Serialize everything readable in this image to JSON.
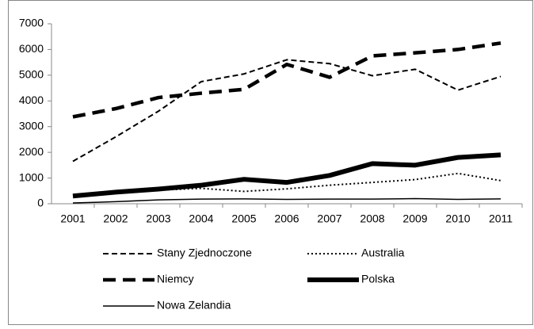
{
  "chart_data": {
    "type": "line",
    "categories": [
      "2001",
      "2002",
      "2003",
      "2004",
      "2005",
      "2006",
      "2007",
      "2008",
      "2009",
      "2010",
      "2011"
    ],
    "series": [
      {
        "name": "Stany Zjednoczone",
        "color": "#000000",
        "style": "dashed",
        "values": [
          1650,
          2600,
          3600,
          4750,
          5050,
          5600,
          5450,
          4980,
          5230,
          4420,
          4950
        ]
      },
      {
        "name": "Australia",
        "color": "#000000",
        "style": "dotted",
        "values": [
          300,
          420,
          530,
          600,
          480,
          580,
          720,
          830,
          940,
          1180,
          900
        ]
      },
      {
        "name": "Niemcy",
        "color": "#000000",
        "style": "long-dashed",
        "values": [
          3380,
          3700,
          4130,
          4300,
          4450,
          5420,
          4920,
          5750,
          5870,
          6000,
          6250
        ]
      },
      {
        "name": "Polska",
        "color": "#000000",
        "style": "solid-thick",
        "values": [
          300,
          450,
          570,
          720,
          950,
          830,
          1100,
          1560,
          1500,
          1800,
          1900
        ]
      },
      {
        "name": "Nowa Zelandia",
        "color": "#000000",
        "style": "solid",
        "values": [
          30,
          80,
          150,
          180,
          190,
          170,
          180,
          180,
          200,
          170,
          190
        ]
      }
    ],
    "ylim": [
      0,
      7000
    ],
    "yticks": [
      0,
      1000,
      2000,
      3000,
      4000,
      5000,
      6000,
      7000
    ],
    "grid": false,
    "legend": "bottom"
  }
}
